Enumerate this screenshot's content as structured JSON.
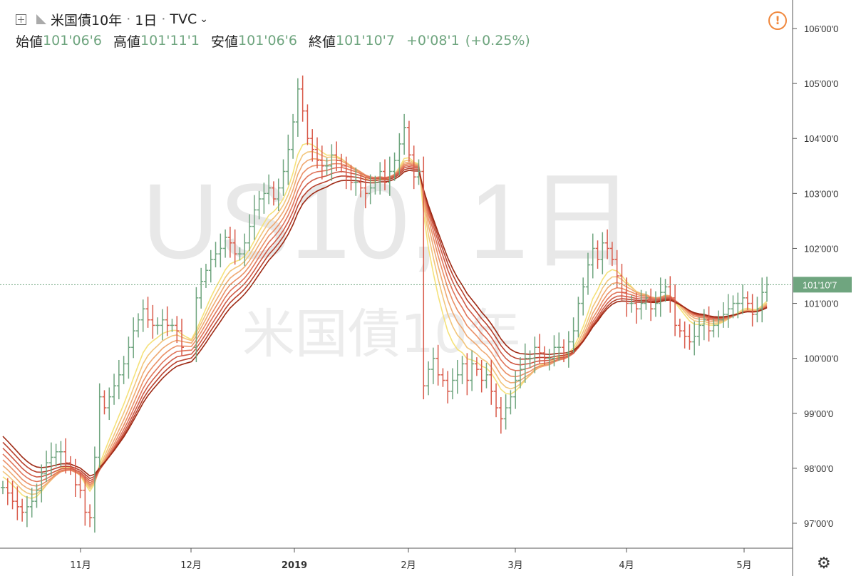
{
  "header": {
    "symbol_name": "米国債10年",
    "interval": "1日",
    "source": "TVC",
    "open_label": "始値",
    "open_value": "101'06'6",
    "high_label": "高値",
    "high_value": "101'11'1",
    "low_label": "安値",
    "low_value": "101'06'6",
    "close_label": "終値",
    "close_value": "101'10'7",
    "change": "+0'08'1",
    "change_pct": "(+0.25%)"
  },
  "watermark": {
    "line1": "US10, 1日",
    "line2": "米国債10年"
  },
  "icons": {
    "alert": "alert-circle-icon",
    "settings": "gear-icon",
    "crosshair": "plus-box-icon",
    "flag": "flag-icon",
    "chevron": "chevron-down-icon"
  },
  "colors": {
    "up": "#6fa57f",
    "down": "#d95a4a",
    "ribbon_fast": "#f5e17a",
    "ribbon_slow": "#9e2a15",
    "price_line": "#6fa57f",
    "alert": "#f0883e"
  },
  "chart_data": {
    "type": "ohlc",
    "title": "",
    "price_axis": {
      "labels": [
        "106'00'0",
        "105'00'0",
        "104'00'0",
        "103'00'0",
        "102'00'0",
        "101'00'0",
        "100'00'0",
        "99'00'0",
        "98'00'0",
        "97'00'0"
      ],
      "ylim": [
        96.6,
        106.4
      ]
    },
    "time_axis": {
      "labels": [
        "11月",
        "12月",
        "2019",
        "2月",
        "3月",
        "4月",
        "5月"
      ]
    },
    "last_price": {
      "label": "101'10'7",
      "value": 101.34
    },
    "ribbon_series": [
      "EMA1",
      "EMA2",
      "EMA3",
      "EMA4",
      "EMA5",
      "EMA6",
      "EMA7",
      "EMA8"
    ],
    "close_series": [
      97.65,
      97.55,
      97.4,
      97.3,
      97.2,
      97.3,
      97.4,
      97.6,
      97.9,
      98.1,
      98.2,
      98.3,
      98.3,
      98.1,
      98.0,
      97.7,
      97.6,
      97.2,
      97.1,
      98.2,
      99.3,
      99.1,
      99.3,
      99.5,
      99.7,
      99.9,
      100.2,
      100.5,
      100.7,
      100.9,
      100.7,
      100.6,
      100.6,
      100.7,
      100.6,
      100.6,
      100.5,
      100.2,
      null,
      null,
      101.1,
      101.4,
      101.6,
      101.8,
      101.9,
      102.0,
      102.2,
      102.1,
      101.9,
      101.9,
      102.1,
      102.4,
      102.7,
      102.9,
      103.0,
      103.1,
      102.9,
      103.1,
      103.4,
      103.8,
      104.3,
      104.9,
      104.5,
      104.0,
      103.8,
      103.6,
      103.5,
      103.5,
      103.7,
      103.6,
      103.5,
      103.3,
      103.2,
      103.2,
      103.1,
      103.0,
      103.1,
      103.2,
      103.4,
      103.2,
      103.4,
      103.6,
      103.9,
      104.2,
      103.7,
      103.3,
      103.4,
      99.5,
      99.8,
      100.0,
      99.7,
      99.6,
      99.4,
      99.6,
      99.7,
      99.9,
      99.6,
      99.9,
      99.8,
      99.6,
      99.7,
      99.4,
      99.1,
      98.9,
      99.1,
      99.3,
      99.6,
      99.8,
      100.0,
      100.0,
      100.2,
      100.1,
      100.0,
      100.0,
      100.2,
      100.2,
      100.1,
      100.3,
      100.5,
      101.0,
      101.3,
      101.7,
      102.0,
      101.8,
      102.1,
      102.0,
      101.8,
      101.5,
      101.2,
      101.0,
      101.0,
      100.9,
      101.0,
      101.1,
      100.9,
      101.0,
      101.2,
      101.3,
      101.1,
      100.6,
      100.5,
      100.4,
      100.3,
      100.4,
      100.6,
      100.7,
      100.5,
      100.6,
      100.7,
      100.8,
      100.9,
      101.0,
      101.0,
      101.1,
      101.0,
      100.8,
      100.9,
      101.2,
      101.34
    ],
    "ribbon_values_approx": {
      "fast_start": 97.9,
      "slow_start": 98.7,
      "fast_peak": 103.4,
      "slow_peak": 102.4,
      "fast_end": 100.85,
      "slow_end": 100.85
    }
  }
}
